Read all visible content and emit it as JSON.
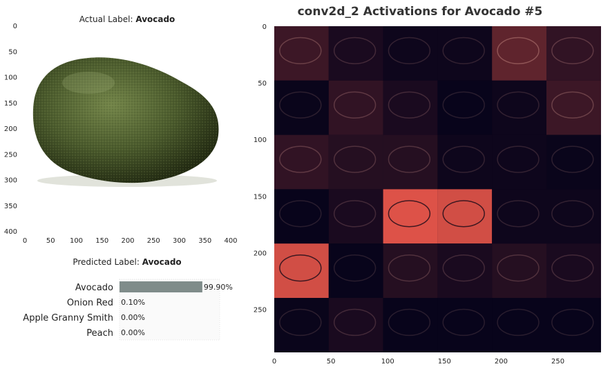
{
  "image_panel": {
    "title_prefix": "Actual Label: ",
    "title_value": "Avocado",
    "xticks": [
      "0",
      "50",
      "100",
      "150",
      "200",
      "250",
      "300",
      "350",
      "400"
    ],
    "yticks": [
      "0",
      "50",
      "100",
      "150",
      "200",
      "250",
      "300",
      "350",
      "400"
    ]
  },
  "prediction_panel": {
    "title_prefix": "Predicted Label: ",
    "title_value": "Avocado"
  },
  "activation_panel": {
    "title": "conv2d_2 Activations for Avocado #5",
    "xticks": [
      "0",
      "50",
      "100",
      "150",
      "200",
      "250"
    ],
    "yticks": [
      "0",
      "50",
      "100",
      "150",
      "200",
      "250"
    ],
    "background_color": "#03021a",
    "highlight_color": "#e8564a"
  },
  "chart_data": [
    {
      "type": "bar",
      "orientation": "horizontal",
      "categories": [
        "Avocado",
        "Onion Red",
        "Apple Granny Smith",
        "Peach"
      ],
      "values": [
        99.9,
        0.1,
        0.0,
        0.0
      ],
      "value_labels": [
        "99.90%",
        "0.10%",
        "0.00%",
        "0.00%"
      ],
      "xlim": [
        0,
        100
      ],
      "bar_color": "#7f8c8a"
    },
    {
      "type": "heatmap",
      "grid": [
        6,
        6
      ],
      "xlim": [
        0,
        288
      ],
      "ylim": [
        288,
        0
      ],
      "cells": [
        [
          0.25,
          0.1,
          0.05,
          0.05,
          0.4,
          0.2
        ],
        [
          0.03,
          0.2,
          0.1,
          0.02,
          0.05,
          0.25
        ],
        [
          0.2,
          0.15,
          0.15,
          0.05,
          0.05,
          0.03
        ],
        [
          0.02,
          0.1,
          0.95,
          0.9,
          0.05,
          0.05
        ],
        [
          0.9,
          0.02,
          0.15,
          0.1,
          0.15,
          0.1
        ],
        [
          0.03,
          0.1,
          0.02,
          0.02,
          0.02,
          0.02
        ]
      ]
    }
  ]
}
